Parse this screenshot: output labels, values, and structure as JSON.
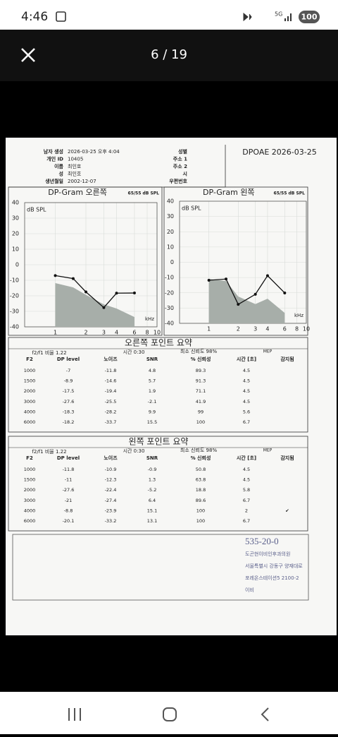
{
  "status_bar": {
    "time": "4:46",
    "network": "5G",
    "battery": "100"
  },
  "viewer": {
    "counter": "6 / 19"
  },
  "document": {
    "info": {
      "labels": [
        "남자 생성",
        "개인 ID",
        "이름",
        "성",
        "생년월일"
      ],
      "values": [
        "2026-03-25 오후 4:04",
        "10405",
        "최인호",
        "최인호",
        "2002-12-07"
      ],
      "fields": [
        "성별",
        "주소 1",
        "주소 2",
        "시",
        "우편번호"
      ],
      "title": "DPOAE 2026-03-25"
    },
    "charts": [
      {
        "title": "DP-Gram 오른쪽",
        "level": "65/55 dB SPL",
        "ylabel": "dB SPL",
        "xlabel": "kHz",
        "xlim": [
          0.5,
          10
        ],
        "ylim": [
          -40,
          40
        ],
        "xticks": [
          1,
          2,
          3,
          4,
          6,
          8,
          10
        ],
        "yticks": [
          40,
          30,
          20,
          10,
          0,
          -10,
          -20,
          -30,
          -40
        ],
        "grid": true,
        "line_color": "#111111",
        "noise_color": "#a7aea9"
      },
      {
        "title": "DP-Gram 왼쪽",
        "level": "65/55 dB SPL",
        "ylabel": "dB SPL",
        "xlabel": "kHz",
        "xlim": [
          0.5,
          10
        ],
        "ylim": [
          -40,
          40
        ],
        "xticks": [
          1,
          2,
          3,
          4,
          6,
          8,
          10
        ],
        "yticks": [
          40,
          30,
          20,
          10,
          0,
          -10,
          -20,
          -30,
          -40
        ],
        "grid": true,
        "line_color": "#111111",
        "noise_color": "#a7aea9"
      }
    ],
    "tables": [
      {
        "title": "오른쪽 포인트 요약",
        "ratio": "f2/f1 비율 1.22",
        "time": "시간 0:30",
        "min_conf": "최소 신뢰도 98%",
        "mep": "MEP",
        "columns": [
          "F2",
          "DP level",
          "노이즈",
          "SNR",
          "% 신뢰성",
          "시간 [초]",
          "감지됨"
        ],
        "rows": [
          [
            1000,
            -7,
            -11.8,
            4.8,
            89.3,
            4.5
          ],
          [
            1500,
            -8.9,
            -14.6,
            5.7,
            91.3,
            4.5
          ],
          [
            2000,
            -17.5,
            -19.4,
            1.9,
            71.1,
            4.5
          ],
          [
            3000,
            -27.6,
            -25.5,
            -2.1,
            41.9,
            4.5
          ],
          [
            4000,
            -18.3,
            -28.2,
            9.9,
            99,
            5.6
          ],
          [
            6000,
            -18.2,
            -33.7,
            15.5,
            100,
            6.7
          ]
        ]
      },
      {
        "title": "왼쪽 포인트 요약",
        "ratio": "f2/f1 비율 1.22",
        "time": "시간 0:30",
        "min_conf": "최소 신뢰도 98%",
        "mep": "MEP",
        "columns": [
          "F2",
          "DP level",
          "노이즈",
          "SNR",
          "% 신뢰성",
          "시간 [초]",
          "감지됨"
        ],
        "rows": [
          [
            1000,
            -11.8,
            -10.9,
            -0.9,
            50.8,
            4.5
          ],
          [
            1500,
            -11,
            -12.3,
            1.3,
            63.8,
            4.5
          ],
          [
            2000,
            -27.6,
            -22.4,
            -5.2,
            18.8,
            5.8
          ],
          [
            3000,
            -21,
            -27.4,
            6.4,
            89.6,
            6.7
          ],
          [
            4000,
            -8.8,
            -23.9,
            15.1,
            100,
            2,
            "✔"
          ],
          [
            6000,
            -20.1,
            -33.2,
            13.1,
            100,
            6.7
          ]
        ]
      }
    ],
    "stamp": [
      "535-20-0",
      "도곤현이비인후과의원",
      "서울특별시 강동구 양재대로",
      "포레온스테이션5 2100-2",
      "이비"
    ]
  }
}
